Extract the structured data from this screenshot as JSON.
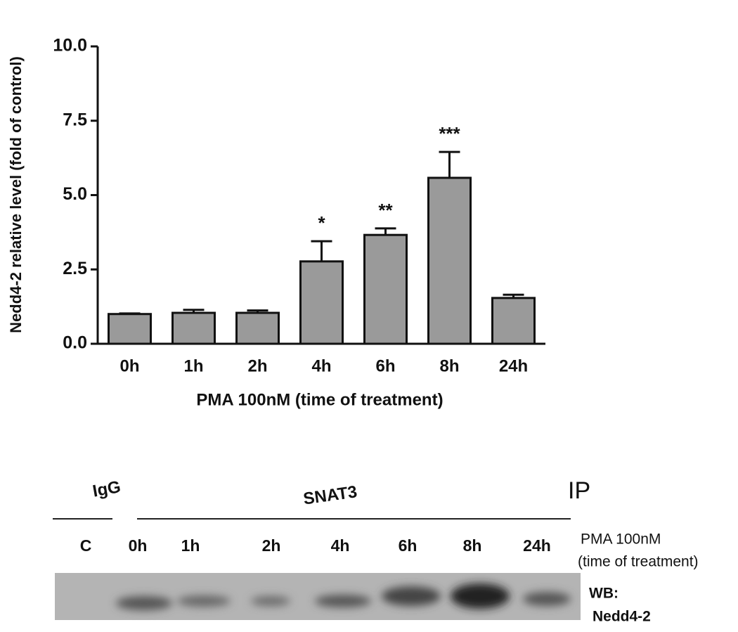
{
  "chart_data": {
    "type": "bar",
    "y_label": "Nedd4-2 relative level (fold of control)",
    "x_label": "PMA 100nM (time of  treatment)",
    "categories": [
      "0h",
      "1h",
      "2h",
      "4h",
      "6h",
      "8h",
      "24h"
    ],
    "values": [
      1.0,
      1.04,
      1.04,
      2.77,
      3.66,
      5.58,
      1.54
    ],
    "errors": [
      0.02,
      0.1,
      0.08,
      0.68,
      0.22,
      0.87,
      0.11
    ],
    "significance": [
      null,
      null,
      null,
      "*",
      "**",
      "***",
      null
    ],
    "color": "#9a9a9a",
    "ylim": [
      0,
      10
    ],
    "yticks": [
      {
        "value": 0,
        "label": "0.0"
      },
      2.5,
      {
        "value": 5,
        "label": "5.0"
      },
      7.5,
      {
        "value": 10,
        "label": "10.0"
      }
    ]
  },
  "blot": {
    "igg": "IgG",
    "snat3": "SNAT3",
    "ip": "IP",
    "lanes": [
      "C",
      "0h",
      "1h",
      "2h",
      "4h",
      "6h",
      "8h",
      "24h"
    ],
    "treatment": "PMA 100nM",
    "treatment_note": "(time of treatment)",
    "wb": "WB:",
    "wb_target": "Nedd4-2"
  }
}
